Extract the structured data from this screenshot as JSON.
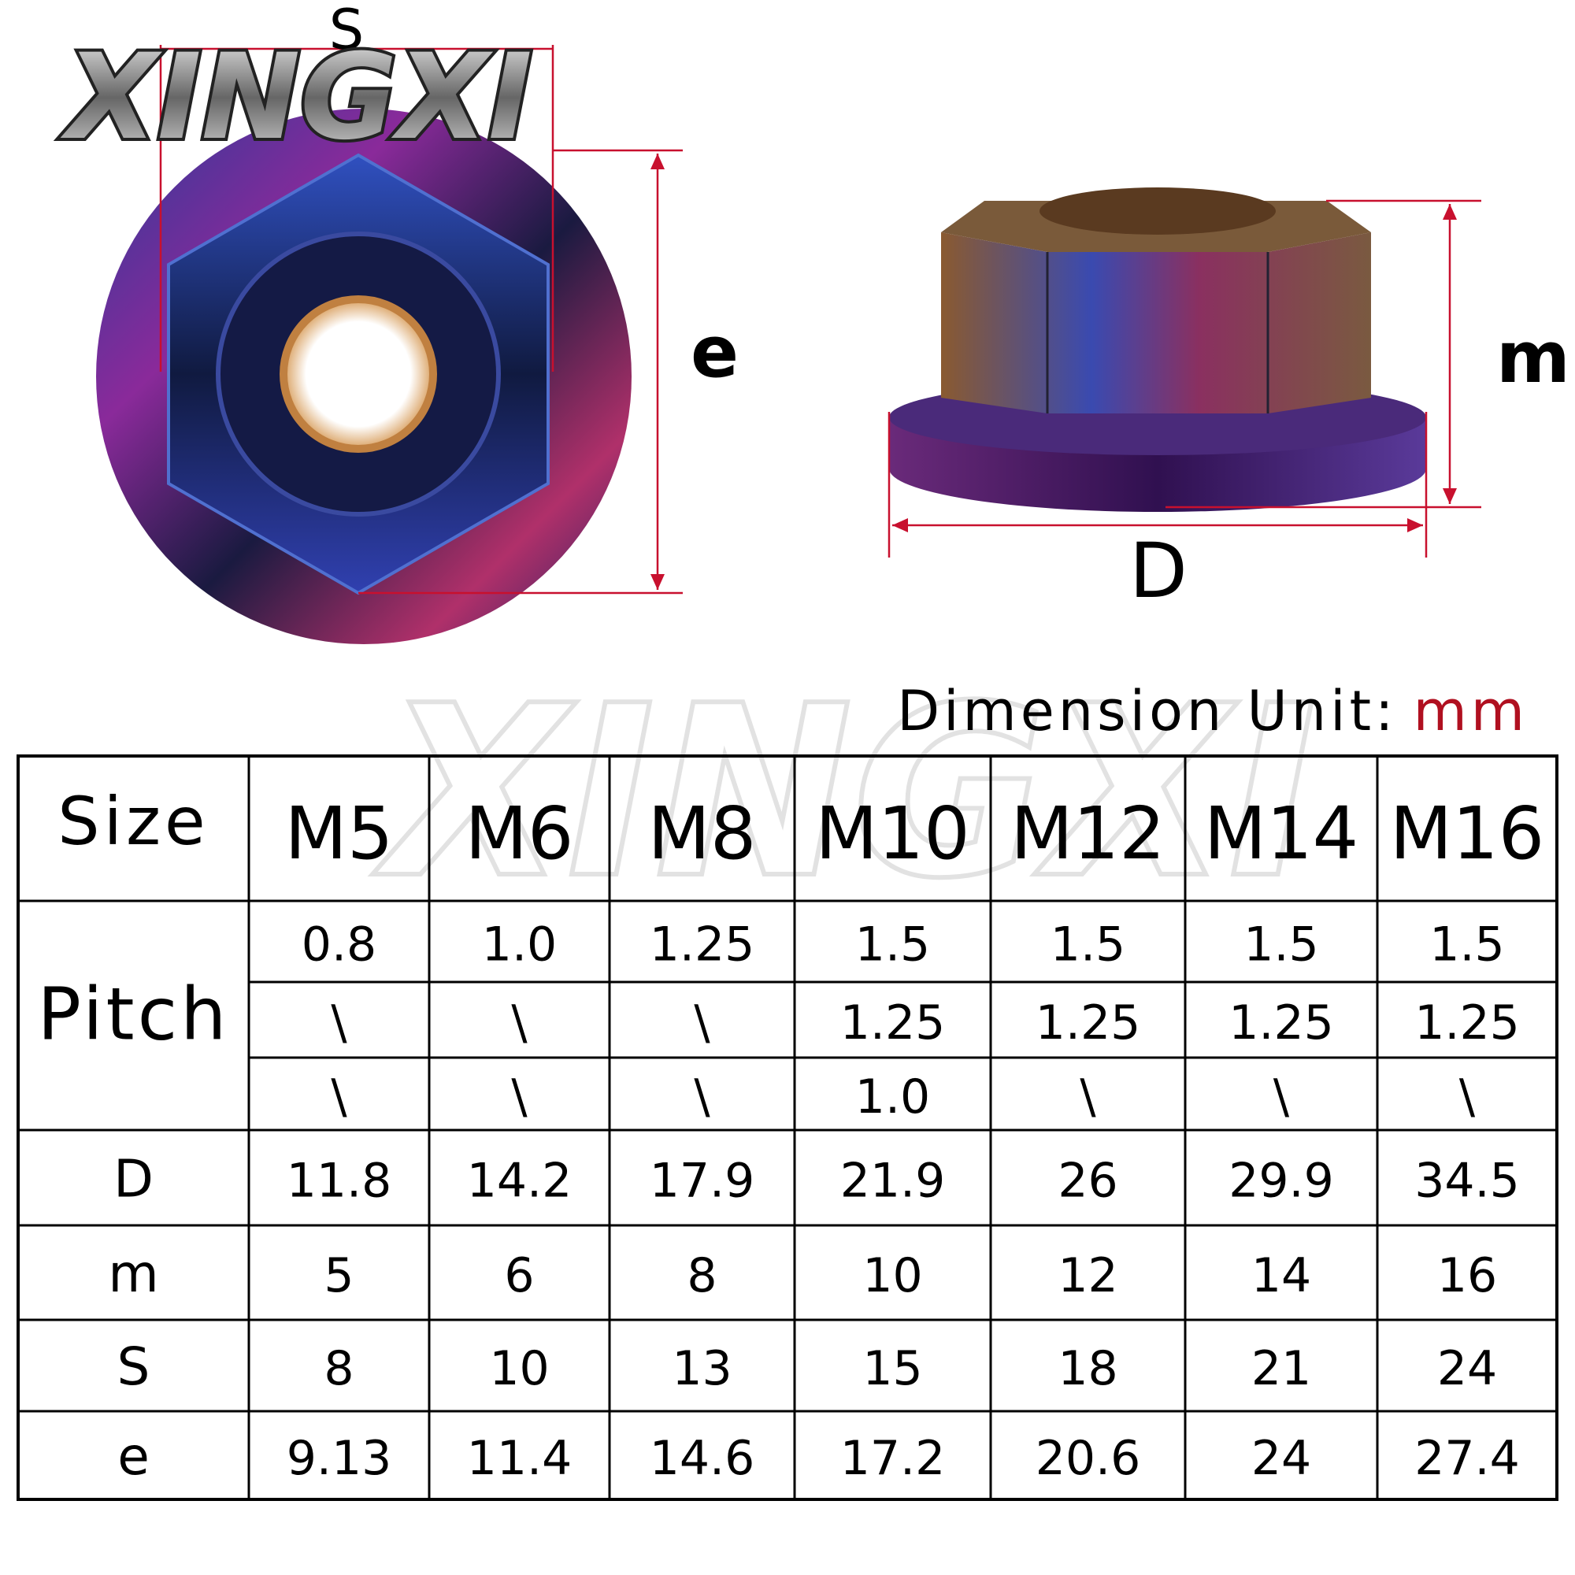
{
  "logo": "XINGXI",
  "diagram": {
    "s_label": "S",
    "e_label": "e",
    "m_label": "m",
    "d_label": "D"
  },
  "unit": {
    "label": "Dimension Unit:",
    "value": "mm"
  },
  "table": {
    "header": [
      "Size",
      "M5",
      "M6",
      "M8",
      "M10",
      "M12",
      "M14",
      "M16"
    ],
    "pitch": {
      "label": "Pitch",
      "rows": [
        [
          "0.8",
          "1.0",
          "1.25",
          "1.5",
          "1.5",
          "1.5",
          "1.5"
        ],
        [
          "\\",
          "\\",
          "\\",
          "1.25",
          "1.25",
          "1.25",
          "1.25"
        ],
        [
          "\\",
          "\\",
          "\\",
          "1.0",
          "\\",
          "\\",
          "\\"
        ]
      ]
    },
    "rows": [
      [
        "D",
        "11.8",
        "14.2",
        "17.9",
        "21.9",
        "26",
        "29.9",
        "34.5"
      ],
      [
        "m",
        "5",
        "6",
        "8",
        "10",
        "12",
        "14",
        "16"
      ],
      [
        "S",
        "8",
        "10",
        "13",
        "15",
        "18",
        "21",
        "24"
      ],
      [
        "e",
        "9.13",
        "11.4",
        "14.6",
        "17.2",
        "20.6",
        "24",
        "27.4"
      ]
    ]
  }
}
